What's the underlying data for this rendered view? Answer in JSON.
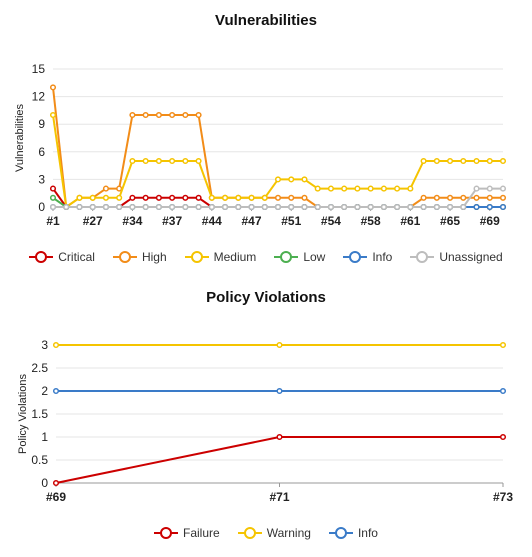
{
  "chart_data": [
    {
      "type": "line",
      "title": "Vulnerabilities",
      "ylabel": "Vulnerabilities",
      "xlabel": "",
      "ylim": [
        0,
        15
      ],
      "yticks": [
        0,
        3,
        6,
        9,
        12,
        15
      ],
      "x_tick_labels": [
        "#1",
        "#27",
        "#34",
        "#37",
        "#44",
        "#47",
        "#51",
        "#54",
        "#58",
        "#61",
        "#65",
        "#69"
      ],
      "n_points": 35,
      "legend_position": "bottom",
      "grid": true,
      "series": [
        {
          "name": "Critical",
          "color": "#cc0000",
          "values": [
            2,
            0,
            0,
            0,
            0,
            0,
            1,
            1,
            1,
            1,
            1,
            1,
            0,
            0,
            0,
            0,
            0,
            0,
            0,
            0,
            0,
            0,
            0,
            0,
            0,
            0,
            0,
            0,
            0,
            0,
            0,
            0,
            0,
            0,
            0
          ]
        },
        {
          "name": "High",
          "color": "#f28c18",
          "values": [
            13,
            0,
            1,
            1,
            2,
            2,
            10,
            10,
            10,
            10,
            10,
            10,
            1,
            1,
            1,
            1,
            1,
            1,
            1,
            1,
            0,
            0,
            0,
            0,
            0,
            0,
            0,
            0,
            1,
            1,
            1,
            1,
            1,
            1,
            1
          ]
        },
        {
          "name": "Medium",
          "color": "#f5c400",
          "values": [
            10,
            0,
            1,
            1,
            1,
            1,
            5,
            5,
            5,
            5,
            5,
            5,
            1,
            1,
            1,
            1,
            1,
            3,
            3,
            3,
            2,
            2,
            2,
            2,
            2,
            2,
            2,
            2,
            5,
            5,
            5,
            5,
            5,
            5,
            5
          ]
        },
        {
          "name": "Low",
          "color": "#4caf50",
          "values": [
            1,
            0,
            0,
            0,
            0,
            0,
            0,
            0,
            0,
            0,
            0,
            0,
            0,
            0,
            0,
            0,
            0,
            0,
            0,
            0,
            0,
            0,
            0,
            0,
            0,
            0,
            0,
            0,
            0,
            0,
            0,
            0,
            0,
            0,
            0
          ]
        },
        {
          "name": "Info",
          "color": "#3a7bc8",
          "values": [
            0,
            0,
            0,
            0,
            0,
            0,
            0,
            0,
            0,
            0,
            0,
            0,
            0,
            0,
            0,
            0,
            0,
            0,
            0,
            0,
            0,
            0,
            0,
            0,
            0,
            0,
            0,
            0,
            0,
            0,
            0,
            0,
            0,
            0,
            0
          ]
        },
        {
          "name": "Unassigned",
          "color": "#bdbdbd",
          "values": [
            0,
            0,
            0,
            0,
            0,
            0,
            0,
            0,
            0,
            0,
            0,
            0,
            0,
            0,
            0,
            0,
            0,
            0,
            0,
            0,
            0,
            0,
            0,
            0,
            0,
            0,
            0,
            0,
            0,
            0,
            0,
            0,
            2,
            2,
            2
          ]
        }
      ]
    },
    {
      "type": "line",
      "title": "Policy Violations",
      "ylabel": "Policy Violations",
      "xlabel": "",
      "ylim": [
        0,
        3
      ],
      "yticks": [
        0,
        0.5,
        1,
        1.5,
        2,
        2.5,
        3
      ],
      "categories": [
        "#69",
        "#71",
        "#73"
      ],
      "legend_position": "bottom",
      "grid": true,
      "series": [
        {
          "name": "Failure",
          "color": "#cc0000",
          "values": [
            0,
            1,
            1
          ]
        },
        {
          "name": "Warning",
          "color": "#f5c400",
          "values": [
            3,
            3,
            3
          ]
        },
        {
          "name": "Info",
          "color": "#3a7bc8",
          "values": [
            2,
            2,
            2
          ]
        }
      ]
    }
  ]
}
